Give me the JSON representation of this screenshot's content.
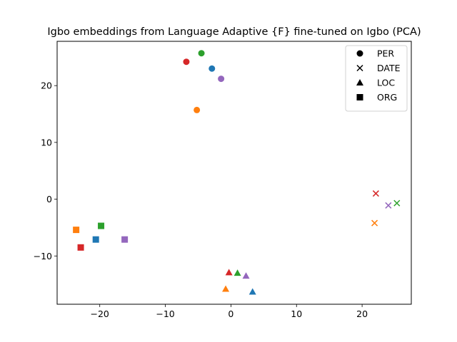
{
  "chart_data": {
    "type": "scatter",
    "title": "Igbo embeddings from Language Adaptive {F} fine-tuned on Igbo (PCA)",
    "xlabel": "",
    "ylabel": "",
    "xlim": [
      -26.5,
      27.5
    ],
    "ylim": [
      -18.5,
      27.8
    ],
    "xticks": [
      -20,
      -10,
      0,
      10,
      20
    ],
    "yticks": [
      -10,
      0,
      10,
      20
    ],
    "grid": false,
    "legend_position": "top-right",
    "legend": [
      {
        "label": "PER",
        "marker": "circle"
      },
      {
        "label": "DATE",
        "marker": "x"
      },
      {
        "label": "LOC",
        "marker": "triangle"
      },
      {
        "label": "ORG",
        "marker": "square"
      }
    ],
    "points": [
      {
        "category": "PER",
        "x": -4.5,
        "y": 25.7,
        "color": "#2ca02c"
      },
      {
        "category": "PER",
        "x": -6.8,
        "y": 24.2,
        "color": "#d62728"
      },
      {
        "category": "PER",
        "x": -2.9,
        "y": 23.0,
        "color": "#1f77b4"
      },
      {
        "category": "PER",
        "x": -1.5,
        "y": 21.2,
        "color": "#9467bd"
      },
      {
        "category": "PER",
        "x": -5.2,
        "y": 15.7,
        "color": "#ff7f0e"
      },
      {
        "category": "DATE",
        "x": 22.1,
        "y": 1.0,
        "color": "#d62728"
      },
      {
        "category": "DATE",
        "x": 25.3,
        "y": -0.7,
        "color": "#2ca02c"
      },
      {
        "category": "DATE",
        "x": 24.0,
        "y": -1.1,
        "color": "#9467bd"
      },
      {
        "category": "DATE",
        "x": 21.9,
        "y": -4.2,
        "color": "#ff7f0e"
      },
      {
        "category": "LOC",
        "x": -0.3,
        "y": -12.9,
        "color": "#d62728"
      },
      {
        "category": "LOC",
        "x": 1.0,
        "y": -13.0,
        "color": "#2ca02c"
      },
      {
        "category": "LOC",
        "x": 2.3,
        "y": -13.5,
        "color": "#9467bd"
      },
      {
        "category": "LOC",
        "x": -0.8,
        "y": -15.8,
        "color": "#ff7f0e"
      },
      {
        "category": "LOC",
        "x": 3.3,
        "y": -16.3,
        "color": "#1f77b4"
      },
      {
        "category": "ORG",
        "x": -19.8,
        "y": -4.7,
        "color": "#2ca02c"
      },
      {
        "category": "ORG",
        "x": -23.6,
        "y": -5.4,
        "color": "#ff7f0e"
      },
      {
        "category": "ORG",
        "x": -20.6,
        "y": -7.1,
        "color": "#1f77b4"
      },
      {
        "category": "ORG",
        "x": -16.2,
        "y": -7.1,
        "color": "#9467bd"
      },
      {
        "category": "ORG",
        "x": -22.9,
        "y": -8.5,
        "color": "#d62728"
      }
    ]
  }
}
